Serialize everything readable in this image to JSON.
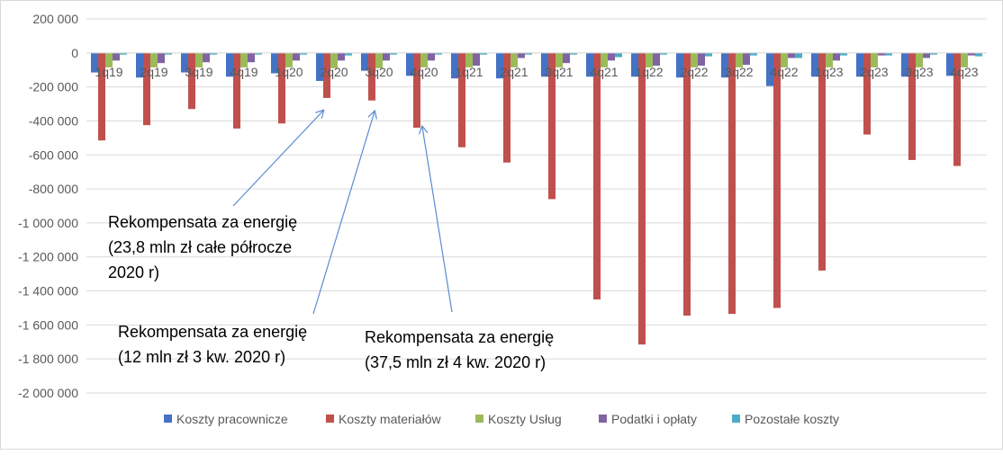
{
  "chart_data": {
    "type": "bar",
    "title": "",
    "xlabel": "",
    "ylabel": "",
    "ylim": [
      -2000000,
      200000
    ],
    "y_ticks": [
      200000,
      0,
      -200000,
      -400000,
      -600000,
      -800000,
      -1000000,
      -1200000,
      -1400000,
      -1600000,
      -1800000,
      -2000000
    ],
    "y_tick_labels": [
      "200 000",
      "0",
      "-200 000",
      "-400 000",
      "-600 000",
      "-800 000",
      "-1 000 000",
      "-1 200 000",
      "-1 400 000",
      "-1 600 000",
      "-1 800 000",
      "-2 000 000"
    ],
    "grid": true,
    "legend_position": "bottom",
    "categories": [
      "1q19",
      "2q19",
      "3q19",
      "4q19",
      "1q20",
      "2q20",
      "3q20",
      "4q20",
      "1q21",
      "2q21",
      "3q21",
      "4q21",
      "1q22",
      "2q22",
      "3q22",
      "4q22",
      "1q23",
      "2q23",
      "3q23",
      "4q23"
    ],
    "series": [
      {
        "name": "Koszty pracownicze",
        "color": "#4472C4",
        "values": [
          -115000,
          -145000,
          -115000,
          -140000,
          -120000,
          -165000,
          -105000,
          -135000,
          -150000,
          -150000,
          -140000,
          -140000,
          -140000,
          -145000,
          -145000,
          -195000,
          -140000,
          -140000,
          -140000,
          -135000
        ]
      },
      {
        "name": "Koszty materiałów",
        "color": "#C0504D",
        "values": [
          -515000,
          -425000,
          -330000,
          -445000,
          -415000,
          -265000,
          -280000,
          -440000,
          -555000,
          -645000,
          -860000,
          -1450000,
          -1715000,
          -1545000,
          -1535000,
          -1500000,
          -1280000,
          -480000,
          -630000,
          -665000
        ]
      },
      {
        "name": "Koszty Usług",
        "color": "#9BBB59",
        "values": [
          -85000,
          -85000,
          -85000,
          -85000,
          -85000,
          -90000,
          -90000,
          -85000,
          -85000,
          -85000,
          -85000,
          -85000,
          -85000,
          -85000,
          -85000,
          -85000,
          -85000,
          -85000,
          -85000,
          -85000
        ]
      },
      {
        "name": "Podatki i opłaty",
        "color": "#8064A2",
        "values": [
          -45000,
          -60000,
          -55000,
          -55000,
          -45000,
          -45000,
          -45000,
          -45000,
          -75000,
          -30000,
          -60000,
          -45000,
          -75000,
          -75000,
          -70000,
          -30000,
          -45000,
          -15000,
          -30000,
          -15000
        ]
      },
      {
        "name": "Pozostałe koszty",
        "color": "#4BACC6",
        "values": [
          -10000,
          -10000,
          -10000,
          -10000,
          -10000,
          -15000,
          -10000,
          -10000,
          -10000,
          -10000,
          -10000,
          -25000,
          -10000,
          -20000,
          -15000,
          -30000,
          -15000,
          -15000,
          -10000,
          -20000
        ]
      }
    ],
    "annotations": [
      {
        "lines": [
          "Rekompensata za energię",
          "(23,8 mln zł całe półrocze",
          "2020 r)"
        ],
        "points_to": "2q20"
      },
      {
        "lines": [
          "Rekompensata za energię",
          "(12 mln zł 3 kw. 2020 r)"
        ],
        "points_to": "3q20"
      },
      {
        "lines": [
          "Rekompensata za energię",
          "(37,5 mln zł 4 kw. 2020 r)"
        ],
        "points_to": "4q20"
      }
    ]
  }
}
